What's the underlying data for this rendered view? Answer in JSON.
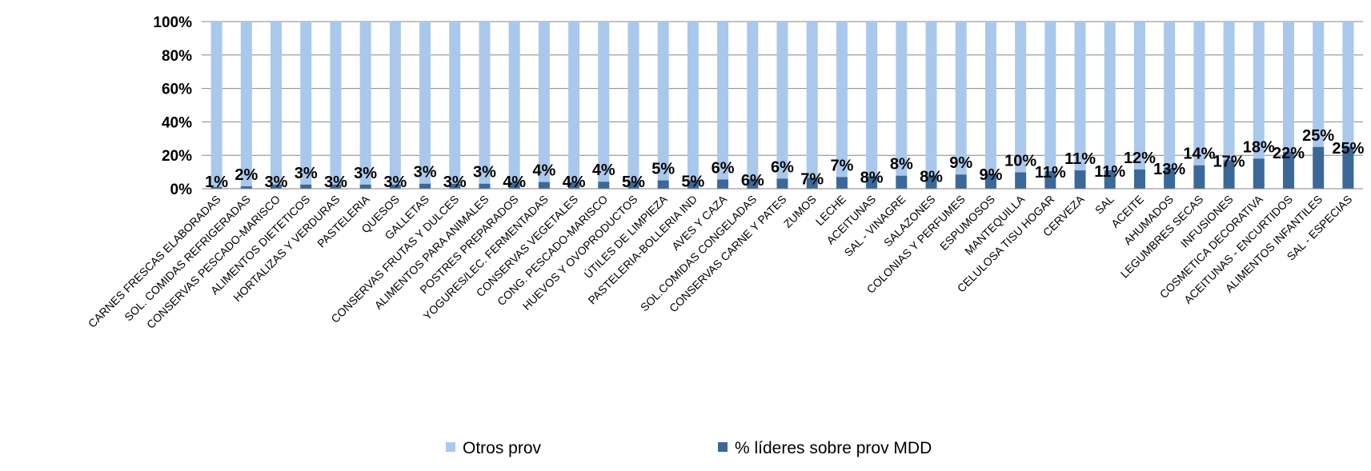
{
  "chart_data": {
    "type": "bar",
    "stacked": true,
    "percent_stacked": true,
    "categories": [
      "CARNES FRESCAS ELABORADAS",
      "SOL. COMIDAS REFRIGERADAS",
      "CONSERVAS PESCADO-MARISCO",
      "ALIMENTOS DIETETICOS",
      "HORTALIZAS Y VERDURAS",
      "PASTELERIA",
      "QUESOS",
      "GALLETAS",
      "CONSERVAS FRUTAS Y DULCES",
      "ALIMENTOS PARA ANIMALES",
      "POSTRES PREPARADOS",
      "YOGURES/LEC. FERMENTADAS",
      "CONSERVAS VEGETALES",
      "CONG. PESCADO-MARISCO",
      "HUEVOS Y OVOPRODUCTOS",
      "ÚTILES DE LIMPIEZA",
      "PASTELERIA-BOLLERIA IND",
      "AVES Y CAZA",
      "SOL.COMIDAS CONGELADAS",
      "CONSERVAS CARNE Y PATES",
      "ZUMOS",
      "LECHE",
      "ACEITUNAS",
      "SAL -  VINAGRE",
      "SALAZONES",
      "COLONIAS Y PERFUMES",
      "ESPUMOSOS",
      "MANTEQUILLA",
      "CELULOSA TISU HOGAR",
      "CERVEZA",
      "SAL",
      "ACEITE",
      "AHUMADOS",
      "LEGUMBRES SECAS",
      "INFUSIONES",
      "COSMETICA DECORATIVA",
      "ACEITUNAS - ENCURTIDOS",
      "ALIMENTOS INFANTILES",
      "SAL -  ESPECIAS"
    ],
    "series": [
      {
        "name": "% líderes sobre prov MDD",
        "color": "#3a6999",
        "values": [
          1,
          1.5,
          2.5,
          2.5,
          2.5,
          2.5,
          2.5,
          3,
          3,
          3,
          4,
          4,
          4,
          4.2,
          4.5,
          5,
          5,
          5.5,
          5.8,
          6,
          6.5,
          7,
          7.5,
          7.8,
          8,
          8.5,
          9,
          9.8,
          10.5,
          11,
          11,
          11.5,
          12.5,
          14,
          17,
          18,
          22,
          25,
          25
        ],
        "labels": [
          "1%",
          "2%",
          "3%",
          "3%",
          "3%",
          "3%",
          "3%",
          "3%",
          "3%",
          "3%",
          "4%",
          "4%",
          "4%",
          "4%",
          "5%",
          "5%",
          "5%",
          "6%",
          "6%",
          "6%",
          "7%",
          "7%",
          "8%",
          "8%",
          "8%",
          "9%",
          "9%",
          "10%",
          "11%",
          "11%",
          "11%",
          "12%",
          "13%",
          "14%",
          "17%",
          "18%",
          "22%",
          "25%",
          "25%"
        ]
      },
      {
        "name": "Otros prov",
        "color": "#a9c8ec",
        "values": [
          99,
          98.5,
          97.5,
          97.5,
          97.5,
          97.5,
          97.5,
          97,
          97,
          97,
          96,
          96,
          96,
          95.8,
          95.5,
          95,
          95,
          94.5,
          94.2,
          94,
          93.5,
          93,
          92.5,
          92.2,
          92,
          91.5,
          91,
          90.2,
          89.5,
          89,
          89,
          88.5,
          87.5,
          86,
          83,
          82,
          78,
          75,
          75
        ]
      }
    ],
    "yticks": [
      "0%",
      "20%",
      "40%",
      "60%",
      "80%",
      "100%"
    ],
    "ylim": [
      0,
      100
    ],
    "title": "",
    "xlabel": "",
    "ylabel": "",
    "grid": true,
    "legend_position": "bottom",
    "legend": [
      "Otros prov",
      "% líderes sobre prov MDD"
    ]
  }
}
